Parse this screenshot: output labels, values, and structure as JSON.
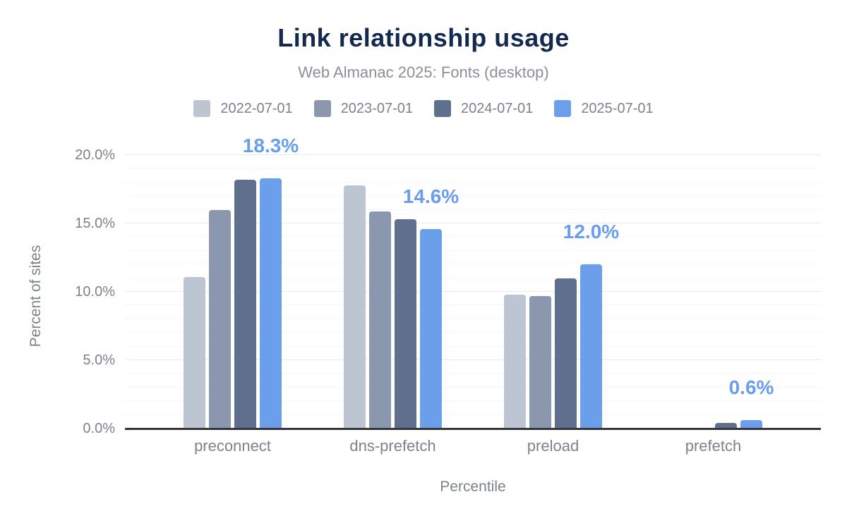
{
  "header": {
    "title": "Link relationship usage",
    "subtitle": "Web Almanac 2025: Fonts (desktop)"
  },
  "chart_data": {
    "type": "bar",
    "title": "Link relationship usage",
    "subtitle": "Web Almanac 2025: Fonts (desktop)",
    "xlabel": "Percentile",
    "ylabel": "Percent of sites",
    "categories": [
      "preconnect",
      "dns-prefetch",
      "preload",
      "prefetch"
    ],
    "series": [
      {
        "name": "2022-07-01",
        "color": "#bdc4d2",
        "values": [
          11.1,
          17.8,
          9.8,
          0.0
        ]
      },
      {
        "name": "2023-07-01",
        "color": "#8b97ae",
        "values": [
          16.0,
          15.9,
          9.7,
          0.0
        ]
      },
      {
        "name": "2024-07-01",
        "color": "#5e708e",
        "values": [
          18.2,
          15.3,
          11.0,
          0.4
        ]
      },
      {
        "name": "2025-07-01",
        "color": "#6b9fec",
        "values": [
          18.3,
          14.6,
          12.0,
          0.6
        ]
      }
    ],
    "data_labels": {
      "series": "2025-07-01",
      "values": [
        "18.3%",
        "14.6%",
        "12.0%",
        "0.6%"
      ],
      "color": "#699ded"
    },
    "ylim": [
      0,
      20
    ],
    "yticks": [
      {
        "value": 0,
        "label": "0.0%"
      },
      {
        "value": 5,
        "label": "5.0%"
      },
      {
        "value": 10,
        "label": "10.0%"
      },
      {
        "value": 15,
        "label": "15.0%"
      },
      {
        "value": 20,
        "label": "20.0%"
      }
    ],
    "grid": {
      "major_interval": 5,
      "minor_interval": 1
    },
    "legend_position": "top",
    "colors": {
      "title_text": "#132a4e",
      "secondary_text": "#7c828b",
      "axis_line": "#33373b",
      "background": "#ffffff"
    }
  }
}
